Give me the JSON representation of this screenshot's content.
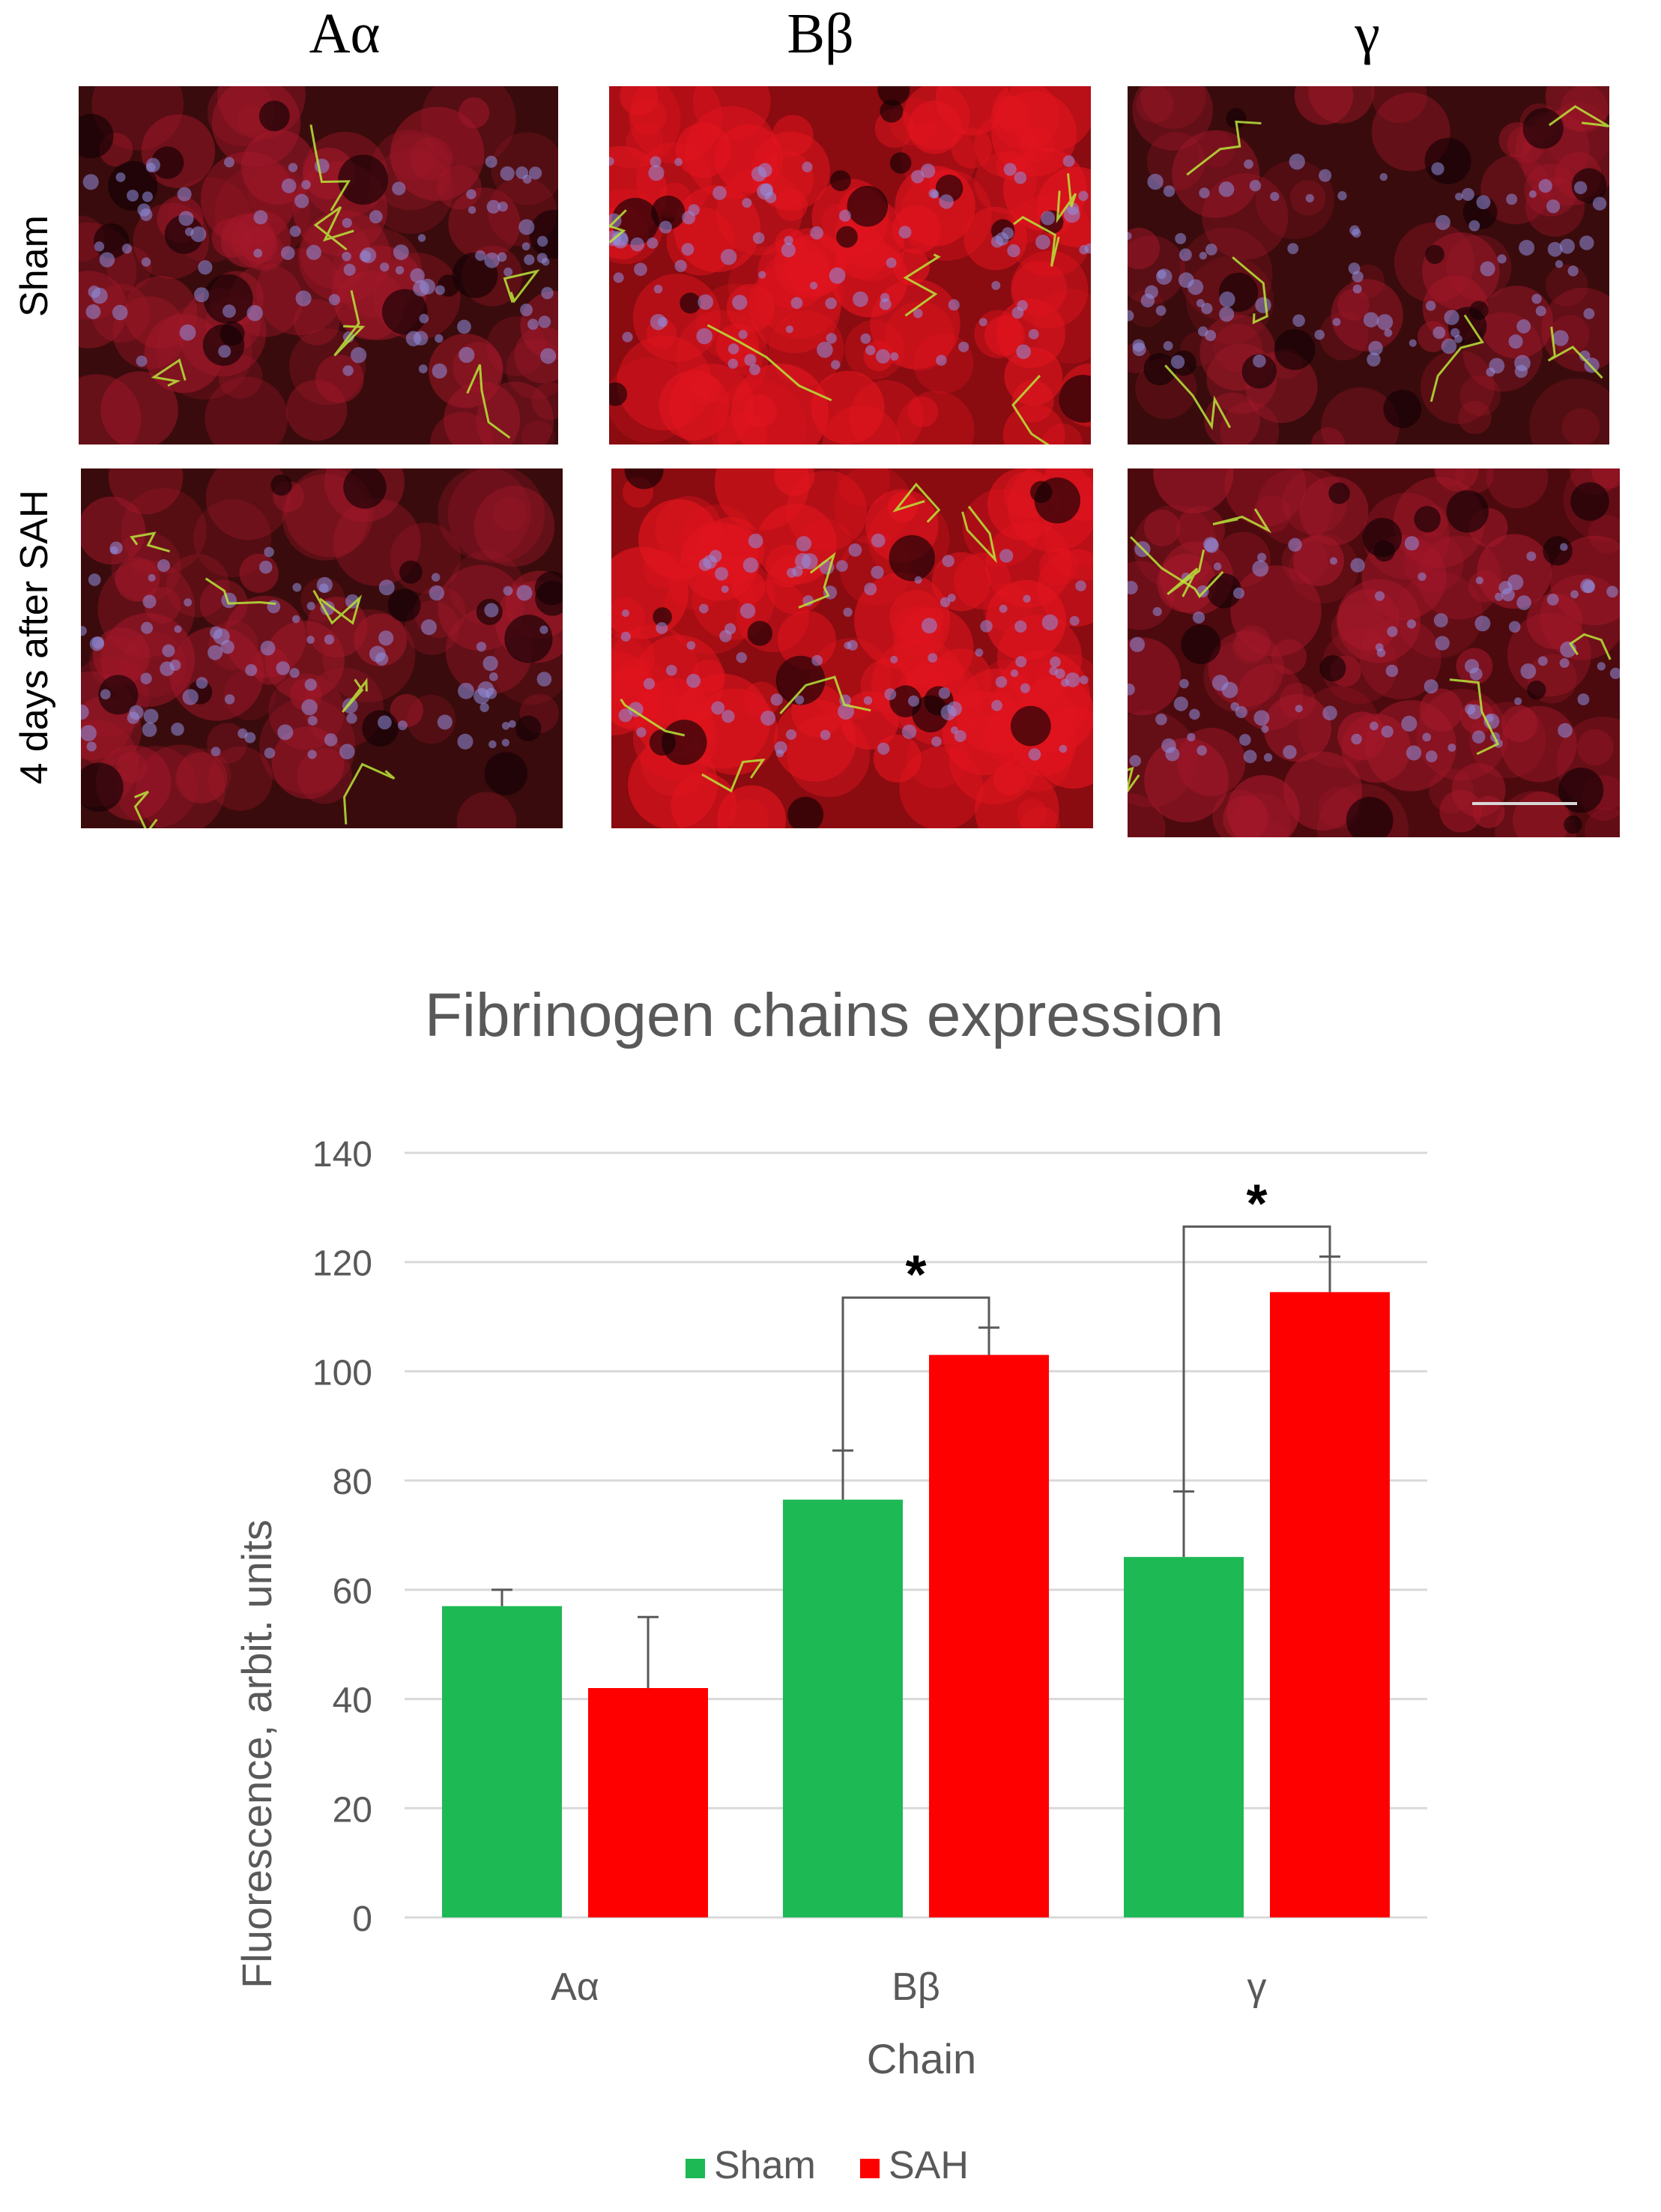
{
  "figure": {
    "columns": [
      "Aα",
      "Bβ",
      "γ"
    ],
    "rows": [
      "Sham",
      "4 days after SAH"
    ]
  },
  "chart_data": {
    "type": "bar",
    "title": "Fibrinogen chains expression",
    "xlabel": "Chain",
    "ylabel": "Fluorescence, arbit. units",
    "categories": [
      "Aα",
      "Bβ",
      "γ"
    ],
    "ylim": [
      0,
      140
    ],
    "yticks": [
      0,
      20,
      40,
      60,
      80,
      100,
      120,
      140
    ],
    "grid": true,
    "legend_position": "bottom",
    "series": [
      {
        "name": "Sham",
        "color": "#1db954",
        "values": [
          57,
          76.5,
          66
        ],
        "errors": [
          3,
          9,
          12
        ]
      },
      {
        "name": "SAH",
        "color": "#ff0000",
        "values": [
          42,
          103,
          114.5
        ],
        "errors": [
          13,
          5,
          6.5
        ]
      }
    ],
    "annotations": [
      {
        "text": "*",
        "category": "Bβ",
        "between": [
          "Sham",
          "SAH"
        ]
      },
      {
        "text": "*",
        "category": "γ",
        "between": [
          "Sham",
          "SAH"
        ]
      }
    ]
  }
}
